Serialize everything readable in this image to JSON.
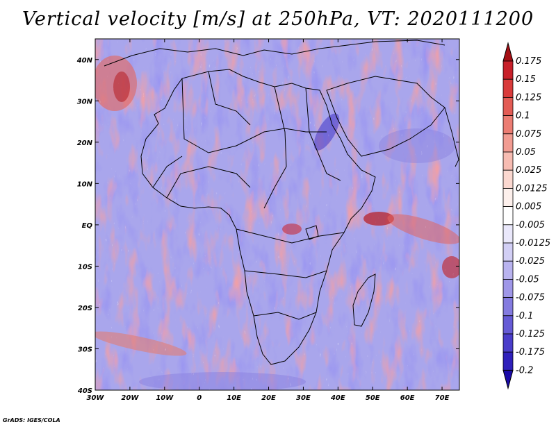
{
  "title": "Vertical velocity [m/s] at 250hPa, VT: 2020111200",
  "credit": "GrADS: IGES/COLA",
  "map": {
    "variable": "Vertical velocity",
    "units": "m/s",
    "level": "250hPa",
    "valid_time": "2020111200",
    "lon_range": [
      -30,
      75
    ],
    "lat_range": [
      -40,
      45
    ],
    "x_ticks": [
      "30W",
      "20W",
      "10W",
      "0",
      "10E",
      "20E",
      "30E",
      "40E",
      "50E",
      "60E",
      "70E"
    ],
    "y_ticks": [
      "40N",
      "30N",
      "20N",
      "10N",
      "EQ",
      "10S",
      "20S",
      "30S",
      "40S"
    ],
    "positive_color": "#c81f2a",
    "negative_color": "#3c2fd0"
  },
  "colorbar": {
    "labels": [
      "0.175",
      "0.15",
      "0.125",
      "0.1",
      "0.075",
      "0.05",
      "0.025",
      "0.0125",
      "0.005",
      "-0.005",
      "-0.0125",
      "-0.025",
      "-0.05",
      "-0.075",
      "-0.1",
      "-0.125",
      "-0.175",
      "-0.2"
    ],
    "colors": [
      "#a50f15",
      "#c8202a",
      "#d93b3b",
      "#e35c55",
      "#ec7d73",
      "#f29c92",
      "#f7bcb2",
      "#fbd8d0",
      "#fdf0ec",
      "#ffffff",
      "#eae8fb",
      "#d2cff5",
      "#b9b3ef",
      "#9f97e8",
      "#847be0",
      "#665bd6",
      "#4a3dca",
      "#2f20bb",
      "#1a0aa8"
    ]
  }
}
